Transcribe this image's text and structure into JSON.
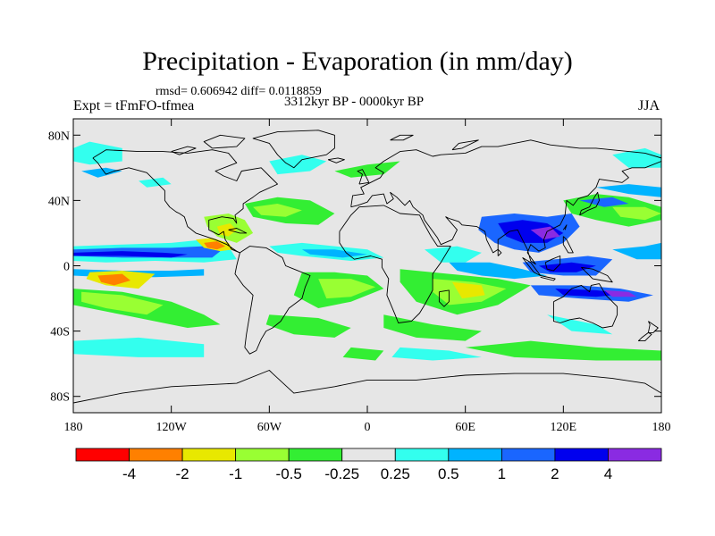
{
  "title": "Precipitation - Evaporation (in mm/day)",
  "stats": "rmsd= 0.606942 diff= 0.0118859",
  "experiment": "Expt = tFmFO-tfmea",
  "period": "3312kyr BP - 0000kyr BP",
  "season": "JJA",
  "map": {
    "projection": "cylindrical-equidistant",
    "lon_range": [
      -180,
      180
    ],
    "lat_range": [
      -90,
      90
    ],
    "land_outline": "coastlines",
    "lat_ticks": [
      {
        "value": 80,
        "label": "80N"
      },
      {
        "value": 40,
        "label": "40N"
      },
      {
        "value": 0,
        "label": "0"
      },
      {
        "value": -40,
        "label": "40S"
      },
      {
        "value": -80,
        "label": "80S"
      }
    ],
    "lon_ticks": [
      {
        "value": -180,
        "label": "180"
      },
      {
        "value": -120,
        "label": "120W"
      },
      {
        "value": -60,
        "label": "60W"
      },
      {
        "value": 0,
        "label": "0"
      },
      {
        "value": 60,
        "label": "60E"
      },
      {
        "value": 120,
        "label": "120E"
      },
      {
        "value": 180,
        "label": "180"
      }
    ]
  },
  "colorbar": {
    "colors": [
      "#ff0000",
      "#ff8000",
      "#e8e800",
      "#99ff33",
      "#33ee33",
      "#e6e6e6",
      "#33ffee",
      "#00b3ff",
      "#1a66ff",
      "#0000ee",
      "#8a2be2"
    ],
    "labels": [
      "-4",
      "-2",
      "-1",
      "-0.5",
      "-0.25",
      "0.25",
      "0.5",
      "1",
      "2",
      "4"
    ]
  }
}
